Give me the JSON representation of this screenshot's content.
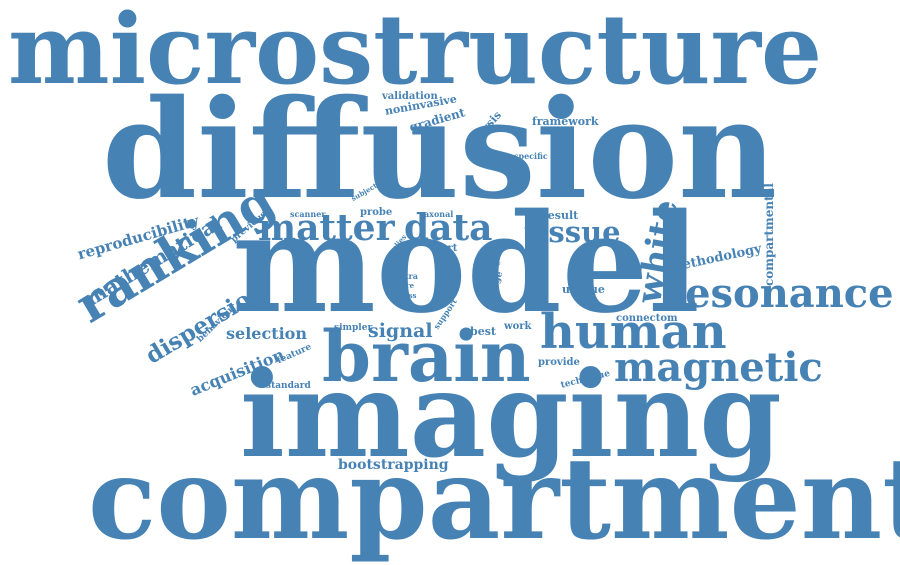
{
  "style": {
    "word_color": "#4682b4",
    "background": "#ffffff"
  },
  "cloud": {
    "words": [
      {
        "text": "microstructure"
      },
      {
        "text": "diffusion"
      },
      {
        "text": "model"
      },
      {
        "text": "imaging"
      },
      {
        "text": "compartment"
      },
      {
        "text": "brain"
      },
      {
        "text": "human"
      },
      {
        "text": "resonance"
      },
      {
        "text": "magnetic"
      },
      {
        "text": "ranking"
      },
      {
        "text": "matter"
      },
      {
        "text": "data"
      },
      {
        "text": "tissue"
      },
      {
        "text": "white"
      },
      {
        "text": "dispersion"
      },
      {
        "text": "mathematical"
      },
      {
        "text": "reproducibility"
      },
      {
        "text": "selection"
      },
      {
        "text": "acquisition"
      },
      {
        "text": "signal"
      },
      {
        "text": "bootstrapping"
      },
      {
        "text": "methodology"
      },
      {
        "text": "compartmental"
      },
      {
        "text": "framework"
      },
      {
        "text": "validation"
      },
      {
        "text": "noninvasive"
      },
      {
        "text": "gradient"
      },
      {
        "text": "analysis"
      },
      {
        "text": "result"
      },
      {
        "text": "unique"
      },
      {
        "text": "best"
      },
      {
        "text": "work"
      },
      {
        "text": "provide"
      },
      {
        "text": "technique"
      },
      {
        "text": "standard"
      },
      {
        "text": "feature"
      },
      {
        "text": "behaviour"
      },
      {
        "text": "previous"
      },
      {
        "text": "scanner"
      },
      {
        "text": "probe"
      },
      {
        "text": "axonal"
      },
      {
        "text": "part"
      },
      {
        "text": "connectom"
      },
      {
        "text": "emerge"
      },
      {
        "text": "value"
      },
      {
        "text": "support"
      },
      {
        "text": "simpler"
      },
      {
        "text": "intra"
      },
      {
        "text": "fibre"
      },
      {
        "text": "cross"
      },
      {
        "text": "relies"
      },
      {
        "text": "study"
      },
      {
        "text": "use"
      },
      {
        "text": "exvo"
      },
      {
        "text": "subject"
      },
      {
        "text": "specific"
      }
    ]
  }
}
